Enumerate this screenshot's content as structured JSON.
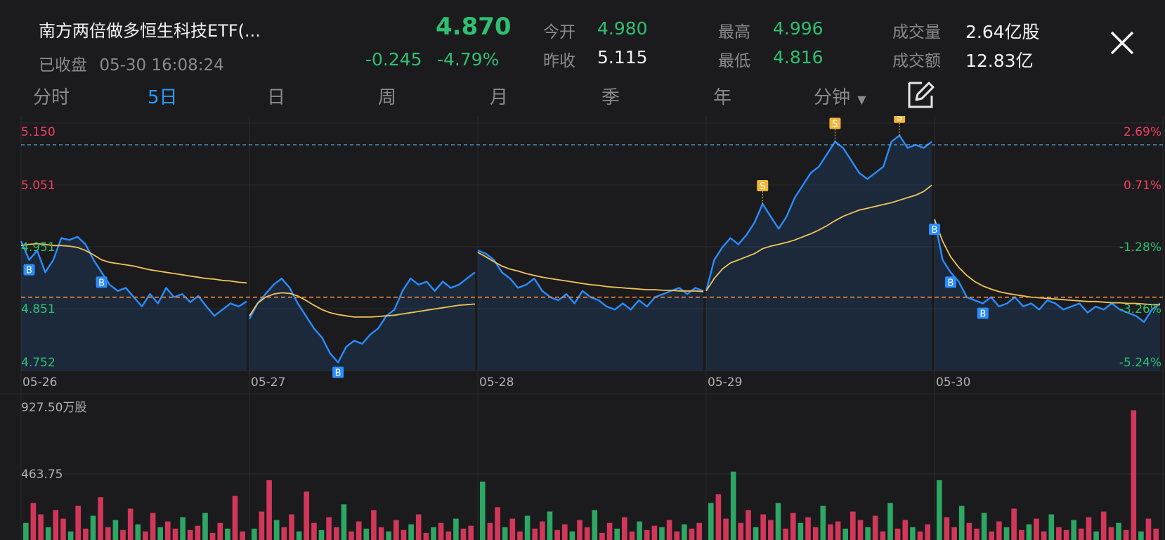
{
  "header": {
    "title": "南方两倍做多恒生科技ETF(...",
    "status": "已收盘",
    "datetime": "05-30 16:08:24",
    "price": "4.870",
    "change": "-0.245",
    "change_pct": "-4.79%",
    "stats": [
      {
        "label": "今开",
        "value": "4.980",
        "color": "green"
      },
      {
        "label": "最高",
        "value": "4.996",
        "color": "green"
      },
      {
        "label": "成交量",
        "value": "2.64亿股",
        "color": "white"
      },
      {
        "label": "昨收",
        "value": "5.115",
        "color": "white"
      },
      {
        "label": "最低",
        "value": "4.816",
        "color": "green"
      },
      {
        "label": "成交额",
        "value": "12.83亿",
        "color": "white"
      }
    ]
  },
  "tabs": [
    {
      "label": "分时",
      "active": false
    },
    {
      "label": "5日",
      "active": true
    },
    {
      "label": "日",
      "active": false
    },
    {
      "label": "周",
      "active": false
    },
    {
      "label": "月",
      "active": false
    },
    {
      "label": "季",
      "active": false
    },
    {
      "label": "年",
      "active": false
    },
    {
      "label": "分钟",
      "active": false
    }
  ],
  "colors": {
    "up": "#f23c64",
    "down": "#2fbf71",
    "price_line": "#2a8cff",
    "avg_line": "#f2c45a",
    "accent": "#2a9cff"
  },
  "chart_data": {
    "type": "line",
    "dates": [
      "05-26",
      "05-27",
      "05-28",
      "05-29",
      "05-30"
    ],
    "price_ticks": [
      "5.150",
      "5.051",
      "4.951",
      "4.851",
      "4.752"
    ],
    "pct_ticks": [
      "2.69%",
      "0.71%",
      "-1.28%",
      "-3.26%",
      "-5.24%"
    ],
    "ylim": [
      4.752,
      5.15
    ],
    "prev_close": 5.115,
    "last_price": 4.87,
    "price_series": [
      [
        4.96,
        4.93,
        4.945,
        4.91,
        4.93,
        4.965,
        4.962,
        4.967,
        4.955,
        4.93,
        4.91,
        4.89,
        4.88,
        4.885,
        4.87,
        4.855,
        4.875,
        4.86,
        4.885,
        4.87,
        4.875,
        4.862,
        4.872,
        4.855,
        4.84,
        4.85,
        4.86,
        4.855,
        4.863
      ],
      [
        4.835,
        4.86,
        4.875,
        4.89,
        4.9,
        4.885,
        4.86,
        4.84,
        4.82,
        4.805,
        4.78,
        4.765,
        4.79,
        4.8,
        4.795,
        4.81,
        4.82,
        4.84,
        4.85,
        4.88,
        4.9,
        4.89,
        4.895,
        4.88,
        4.895,
        4.885,
        4.89,
        4.9,
        4.91
      ],
      [
        4.945,
        4.94,
        4.93,
        4.91,
        4.9,
        4.885,
        4.89,
        4.9,
        4.88,
        4.87,
        4.865,
        4.875,
        4.86,
        4.88,
        4.87,
        4.865,
        4.855,
        4.85,
        4.86,
        4.85,
        4.865,
        4.855,
        4.87,
        4.875,
        4.88,
        4.885,
        4.875,
        4.885,
        4.88
      ],
      [
        4.88,
        4.93,
        4.95,
        4.965,
        4.955,
        4.97,
        4.99,
        5.02,
        5.0,
        4.98,
        5.0,
        5.03,
        5.05,
        5.07,
        5.08,
        5.1,
        5.12,
        5.11,
        5.09,
        5.07,
        5.06,
        5.07,
        5.08,
        5.12,
        5.13,
        5.11,
        5.115,
        5.11,
        5.12
      ],
      [
        4.995,
        4.93,
        4.91,
        4.895,
        4.87,
        4.865,
        4.86,
        4.87,
        4.855,
        4.86,
        4.87,
        4.855,
        4.86,
        4.85,
        4.865,
        4.86,
        4.85,
        4.855,
        4.86,
        4.845,
        4.855,
        4.85,
        4.86,
        4.85,
        4.845,
        4.84,
        4.83,
        4.85,
        4.86
      ]
    ],
    "avg_series": [
      [
        4.953,
        4.955,
        4.956,
        4.955,
        4.953,
        4.953,
        4.952,
        4.95,
        4.945,
        4.938,
        4.93,
        4.926,
        4.924,
        4.922,
        4.92,
        4.917,
        4.914,
        4.912,
        4.91,
        4.908,
        4.906,
        4.904,
        4.902,
        4.9,
        4.899,
        4.897,
        4.896,
        4.894,
        4.893
      ],
      [
        4.84,
        4.86,
        4.87,
        4.875,
        4.877,
        4.876,
        4.872,
        4.865,
        4.857,
        4.85,
        4.845,
        4.842,
        4.84,
        4.838,
        4.838,
        4.838,
        4.839,
        4.84,
        4.841,
        4.843,
        4.845,
        4.847,
        4.849,
        4.851,
        4.853,
        4.855,
        4.857,
        4.858,
        4.859
      ],
      [
        4.942,
        4.935,
        4.927,
        4.92,
        4.915,
        4.912,
        4.908,
        4.905,
        4.902,
        4.9,
        4.898,
        4.896,
        4.894,
        4.892,
        4.89,
        4.889,
        4.887,
        4.886,
        4.885,
        4.884,
        4.883,
        4.882,
        4.882,
        4.881,
        4.881,
        4.88,
        4.88,
        4.88,
        4.879
      ],
      [
        4.88,
        4.9,
        4.915,
        4.925,
        4.93,
        4.935,
        4.94,
        4.948,
        4.952,
        4.955,
        4.958,
        4.962,
        4.967,
        4.972,
        4.978,
        4.985,
        4.993,
        5.0,
        5.005,
        5.01,
        5.013,
        5.016,
        5.019,
        5.022,
        5.026,
        5.03,
        5.034,
        5.04,
        5.05
      ],
      [
        4.995,
        4.96,
        4.935,
        4.918,
        4.905,
        4.895,
        4.888,
        4.883,
        4.879,
        4.876,
        4.874,
        4.872,
        4.87,
        4.869,
        4.868,
        4.867,
        4.866,
        4.865,
        4.864,
        4.863,
        4.863,
        4.862,
        4.861,
        4.861,
        4.86,
        4.86,
        4.859,
        4.858,
        4.858
      ]
    ],
    "trade_markers": [
      {
        "day": 0,
        "idx": 1,
        "type": "B"
      },
      {
        "day": 0,
        "idx": 10,
        "type": "B"
      },
      {
        "day": 1,
        "idx": 11,
        "type": "B"
      },
      {
        "day": 3,
        "idx": 7,
        "type": "S"
      },
      {
        "day": 3,
        "idx": 16,
        "type": "S"
      },
      {
        "day": 3,
        "idx": 24,
        "type": "S"
      },
      {
        "day": 4,
        "idx": 0,
        "type": "B"
      },
      {
        "day": 4,
        "idx": 2,
        "type": "B"
      },
      {
        "day": 4,
        "idx": 6,
        "type": "B"
      }
    ],
    "volume_max_label": "927.50万股",
    "volume_mid_label": "463.75",
    "volume_max": 927.5,
    "volume": [
      [
        120,
        260,
        180,
        90,
        210,
        150,
        60,
        240,
        80,
        170,
        300,
        90,
        140,
        70,
        220,
        110,
        60,
        190,
        90,
        130,
        80,
        160,
        70,
        100,
        190,
        50,
        120,
        80,
        310,
        60
      ],
      [
        80,
        200,
        420,
        140,
        90,
        180,
        60,
        340,
        120,
        70,
        160,
        90,
        250,
        60,
        130,
        80,
        210,
        90,
        60,
        140,
        70,
        110,
        180,
        50,
        90,
        120,
        60,
        150,
        80,
        100
      ],
      [
        410,
        120,
        230,
        90,
        150,
        60,
        170,
        80,
        130,
        200,
        70,
        110,
        60,
        140,
        90,
        210,
        50,
        120,
        80,
        160,
        60,
        130,
        70,
        100,
        90,
        140,
        60,
        110,
        80,
        120
      ],
      [
        260,
        320,
        150,
        480,
        120,
        210,
        90,
        180,
        140,
        260,
        80,
        190,
        120,
        160,
        90,
        240,
        110,
        130,
        80,
        200,
        140,
        90,
        170,
        60,
        260,
        80,
        140,
        90,
        60,
        110
      ],
      [
        420,
        160,
        90,
        240,
        120,
        80,
        190,
        60,
        130,
        90,
        220,
        70,
        110,
        150,
        60,
        180,
        90,
        70,
        140,
        80,
        160,
        60,
        200,
        90,
        120,
        70,
        910,
        60,
        150,
        80
      ]
    ]
  }
}
